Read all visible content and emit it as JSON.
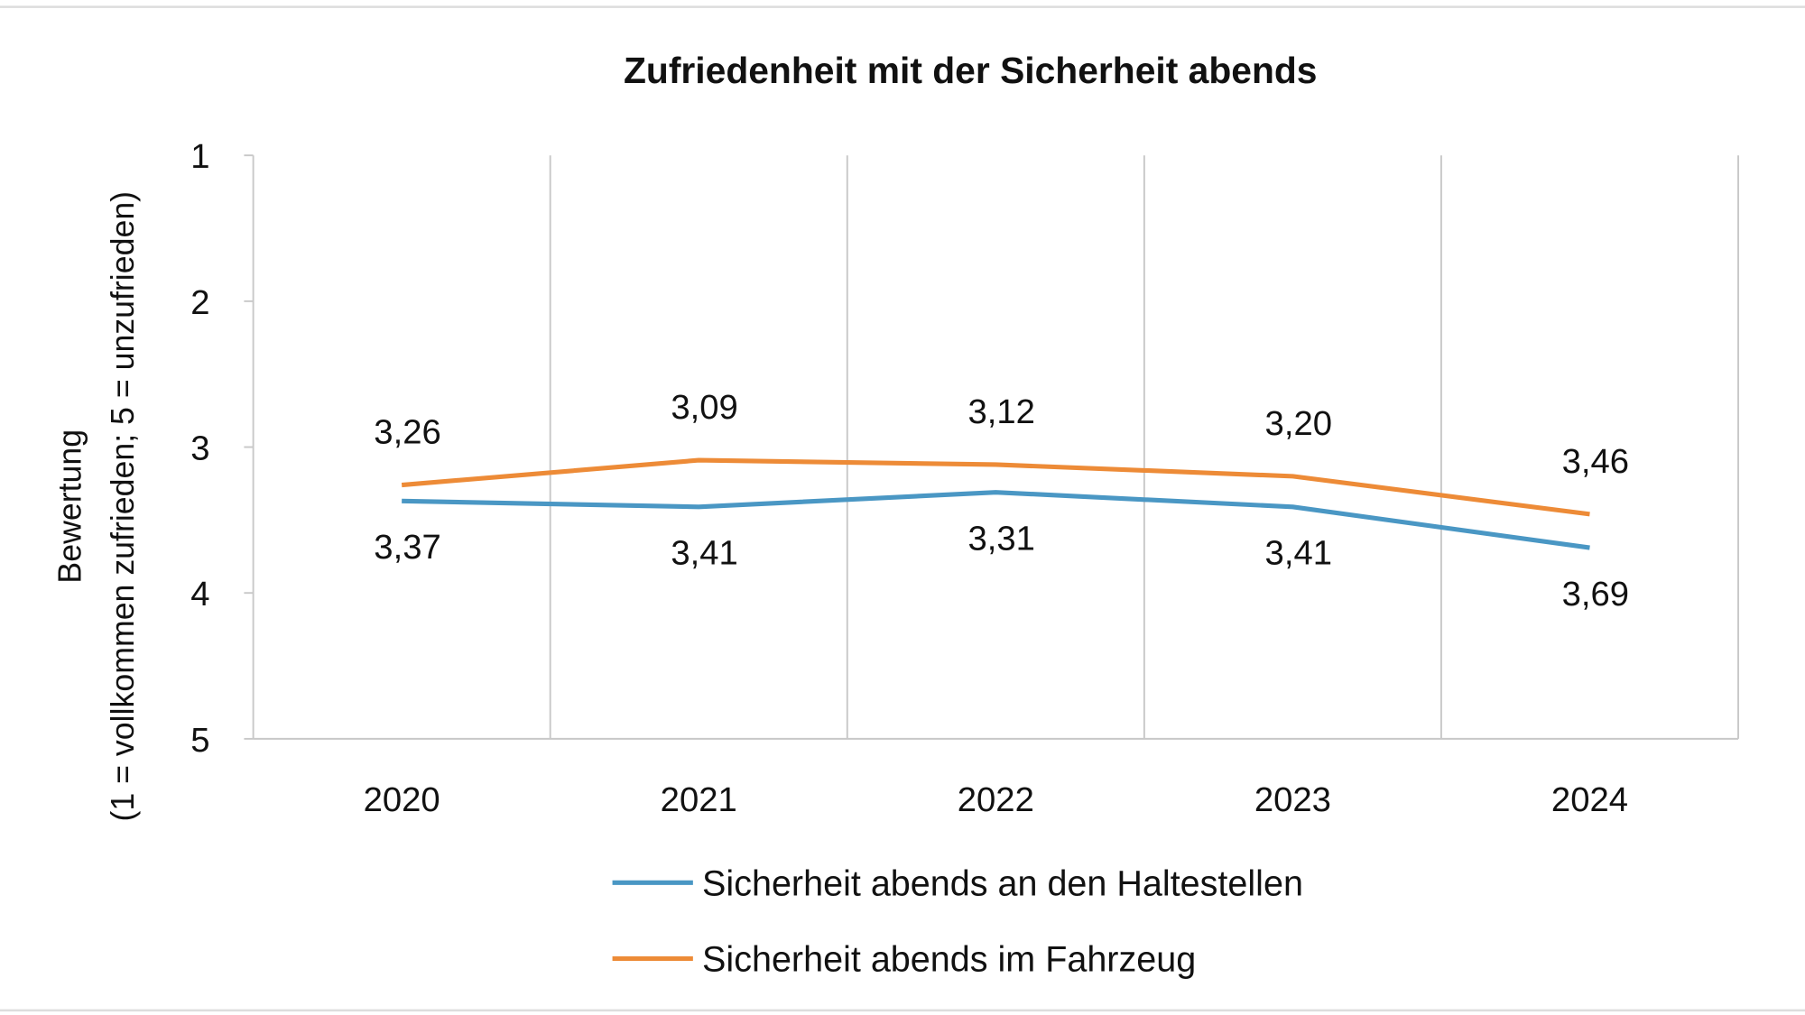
{
  "chart_data": {
    "type": "line",
    "title": "Zufriedenheit mit der Sicherheit abends",
    "ylabel_line1": "Bewertung",
    "ylabel_line2": "(1 = vollkommen zufrieden;  5 = unzufrieden)",
    "categories": [
      "2020",
      "2021",
      "2022",
      "2023",
      "2024"
    ],
    "ylim": [
      1,
      5
    ],
    "y_inverted": true,
    "yticks": [
      "1",
      "2",
      "3",
      "4",
      "5"
    ],
    "grid": "vertical",
    "legend_position": "bottom",
    "series": [
      {
        "name": "Sicherheit abends an den Haltestellen",
        "color": "#4a97c4",
        "values": [
          3.37,
          3.41,
          3.31,
          3.41,
          3.69
        ],
        "labels": [
          "3,37",
          "3,41",
          "3,31",
          "3,41",
          "3,69"
        ],
        "label_position": "below"
      },
      {
        "name": "Sicherheit abends im Fahrzeug",
        "color": "#ed8b37",
        "values": [
          3.26,
          3.09,
          3.12,
          3.2,
          3.46
        ],
        "labels": [
          "3,26",
          "3,09",
          "3,12",
          "3,20",
          "3,46"
        ],
        "label_position": "above"
      }
    ]
  }
}
